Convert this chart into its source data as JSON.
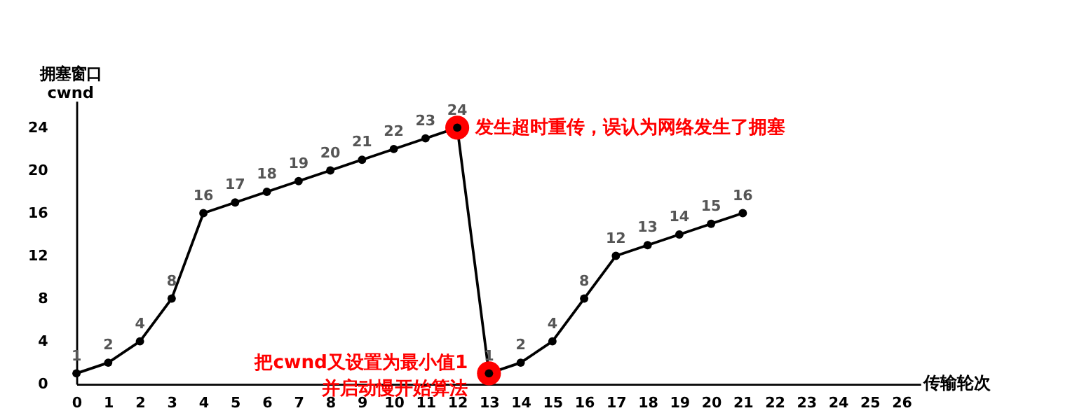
{
  "chart_data": {
    "type": "line",
    "x": [
      0,
      1,
      2,
      3,
      4,
      5,
      6,
      7,
      8,
      9,
      10,
      11,
      12,
      13,
      14,
      15,
      16,
      17,
      18,
      19,
      20,
      21
    ],
    "values": [
      1,
      2,
      4,
      8,
      16,
      17,
      18,
      19,
      20,
      21,
      22,
      23,
      24,
      1,
      2,
      4,
      8,
      12,
      13,
      14,
      15,
      16
    ],
    "color": "#000000",
    "xlabel": "传输轮次",
    "ylabel": "拥塞窗口\ncwnd",
    "xlim": [
      0,
      26.6
    ],
    "xticks": [
      0,
      1,
      2,
      3,
      4,
      5,
      6,
      7,
      8,
      9,
      10,
      11,
      12,
      13,
      14,
      15,
      16,
      17,
      18,
      19,
      20,
      21,
      22,
      23,
      24,
      25,
      26
    ],
    "ylim": [
      0,
      26.5
    ],
    "yticks": [
      0,
      4,
      8,
      12,
      16,
      20,
      24
    ],
    "grid": false,
    "marker": "circle",
    "line_style": "solid",
    "data_labels": true,
    "annotations": [
      {
        "text": "发生超时重传，误认为网络发生了拥塞",
        "x": 12,
        "y": 24
      },
      {
        "text": "把cwnd又设置为最小值1\n并启动慢开始算法",
        "x": 13,
        "y": 1
      }
    ]
  }
}
